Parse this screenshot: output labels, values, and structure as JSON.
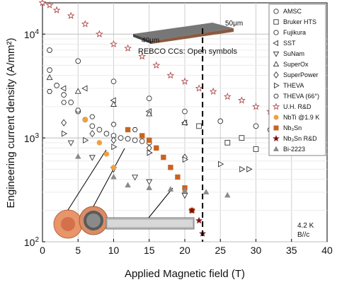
{
  "chart_data": {
    "type": "scatter",
    "xlabel": "Applied Magnetic field (T)",
    "ylabel": "Engineering current density (A/mm²)",
    "xlim": [
      0,
      40
    ],
    "ylim": [
      100,
      20000
    ],
    "yscale": "log",
    "x_ticks": [
      0,
      5,
      10,
      15,
      20,
      25,
      30,
      35,
      40
    ],
    "y_ticks": [
      {
        "value": 100,
        "base": "10",
        "exp": "2"
      },
      {
        "value": 1000,
        "base": "10",
        "exp": "3"
      },
      {
        "value": 10000,
        "base": "10",
        "exp": "4"
      }
    ],
    "vline": 22.5,
    "grid": true,
    "legend_placement": "top-right",
    "annotations": {
      "rebco": "REBCO CCs: Open symbols",
      "dim1": "50μm",
      "dim2": "40μm",
      "condition1": "4.2 K",
      "condition2": "B//c"
    },
    "series": [
      {
        "name": "AMSC",
        "marker": "circle",
        "open": true,
        "color": "#333333",
        "points": [
          [
            1,
            4500
          ],
          [
            2,
            3200
          ],
          [
            3,
            2600
          ],
          [
            4,
            2200
          ],
          [
            5,
            1800
          ],
          [
            6,
            1500
          ],
          [
            7,
            1300
          ],
          [
            8,
            1200
          ],
          [
            9,
            1100
          ],
          [
            10,
            1050
          ],
          [
            11,
            1000
          ],
          [
            12,
            980
          ],
          [
            13,
            950
          ],
          [
            14,
            930
          ],
          [
            15,
            900
          ]
        ]
      },
      {
        "name": "Bruker HTS",
        "marker": "square",
        "open": true,
        "color": "#333333",
        "points": [
          [
            22,
            1300
          ],
          [
            26,
            900
          ],
          [
            28,
            1000
          ],
          [
            30,
            780
          ]
        ]
      },
      {
        "name": "Fujikura",
        "marker": "circle",
        "open": true,
        "color": "#333333",
        "points": [
          [
            1,
            7000
          ],
          [
            5,
            5500
          ],
          [
            10,
            3500
          ],
          [
            15,
            2400
          ],
          [
            20,
            1800
          ],
          [
            25,
            1450
          ],
          [
            30,
            1300
          ],
          [
            32,
            1200
          ]
        ]
      },
      {
        "name": "SST",
        "marker": "tri-left",
        "open": true,
        "color": "#333333",
        "points": [
          [
            3,
            3000
          ],
          [
            6,
            3000
          ],
          [
            10,
            2300
          ],
          [
            15,
            1800
          ],
          [
            20,
            1400
          ]
        ]
      },
      {
        "name": "SuNam",
        "marker": "tri-down",
        "open": true,
        "color": "#333333",
        "points": [
          [
            4,
            900
          ],
          [
            7,
            650
          ],
          [
            10,
            500
          ],
          [
            13,
            420
          ],
          [
            15,
            380
          ],
          [
            20,
            280
          ]
        ]
      },
      {
        "name": "SuperOx",
        "marker": "tri-up",
        "open": true,
        "color": "#333333",
        "points": [
          [
            1,
            3800
          ],
          [
            5,
            2800
          ],
          [
            10,
            2100
          ],
          [
            15,
            1700
          ],
          [
            20,
            1400
          ]
        ]
      },
      {
        "name": "SuperPower",
        "marker": "diamond",
        "open": true,
        "color": "#333333",
        "points": [
          [
            3,
            1400
          ],
          [
            7,
            1100
          ],
          [
            10,
            950
          ],
          [
            15,
            800
          ],
          [
            20,
            650
          ]
        ]
      },
      {
        "name": "THEVA",
        "marker": "tri-right",
        "open": true,
        "color": "#333333",
        "points": [
          [
            3,
            1100
          ],
          [
            6,
            950
          ],
          [
            10,
            820
          ],
          [
            15,
            720
          ],
          [
            20,
            620
          ],
          [
            25,
            560
          ],
          [
            28,
            500
          ],
          [
            29,
            500
          ]
        ]
      },
      {
        "name": "THEVA (66°)",
        "marker": "hexagon",
        "open": true,
        "color": "#333333",
        "points": [
          [
            1,
            2800
          ],
          [
            3,
            2200
          ],
          [
            5,
            1850
          ],
          [
            7,
            1600
          ],
          [
            10,
            1350
          ],
          [
            13,
            1200
          ]
        ]
      },
      {
        "name": "U.H. R&D",
        "marker": "star",
        "open": true,
        "color": "#b04a4a",
        "points": [
          [
            0,
            20000
          ],
          [
            1,
            19000
          ],
          [
            2,
            17000
          ],
          [
            4,
            15000
          ],
          [
            6,
            12500
          ],
          [
            8,
            10000
          ],
          [
            10,
            8000
          ],
          [
            12,
            7300
          ],
          [
            14,
            6100
          ],
          [
            16,
            5000
          ],
          [
            18,
            4000
          ],
          [
            20,
            3500
          ],
          [
            22,
            3000
          ],
          [
            24,
            2800
          ],
          [
            26,
            2500
          ],
          [
            28,
            2300
          ],
          [
            30,
            2000
          ],
          [
            32,
            1800
          ],
          [
            34,
            1500
          ],
          [
            36,
            1400
          ],
          [
            38,
            1300
          ]
        ]
      },
      {
        "name": "NbTi @1.9 K",
        "marker": "circle",
        "open": false,
        "color": "#f0a040",
        "points": [
          [
            6,
            1500
          ],
          [
            8,
            900
          ],
          [
            9,
            700
          ],
          [
            10,
            520
          ]
        ]
      },
      {
        "name": "Nb₃Sn",
        "marker": "square",
        "open": false,
        "color": "#c86420",
        "points": [
          [
            12,
            1200
          ],
          [
            14,
            1050
          ],
          [
            15,
            950
          ],
          [
            16,
            800
          ],
          [
            17,
            650
          ],
          [
            18,
            520
          ],
          [
            19,
            420
          ],
          [
            20,
            330
          ],
          [
            21,
            200
          ]
        ]
      },
      {
        "name": "Nb₃Sn R&D",
        "marker": "star",
        "open": false,
        "color": "#7a0f14",
        "points": [
          [
            21,
            200
          ],
          [
            22,
            160
          ],
          [
            22.5,
            120
          ]
        ]
      },
      {
        "name": "Bi-2223",
        "marker": "tri-up",
        "open": false,
        "color": "#8a8a8a",
        "points": [
          [
            5,
            660
          ],
          [
            10,
            420
          ],
          [
            12,
            350
          ],
          [
            15,
            330
          ],
          [
            18,
            320
          ],
          [
            20,
            310
          ],
          [
            23,
            300
          ],
          [
            26,
            280
          ]
        ]
      }
    ]
  }
}
